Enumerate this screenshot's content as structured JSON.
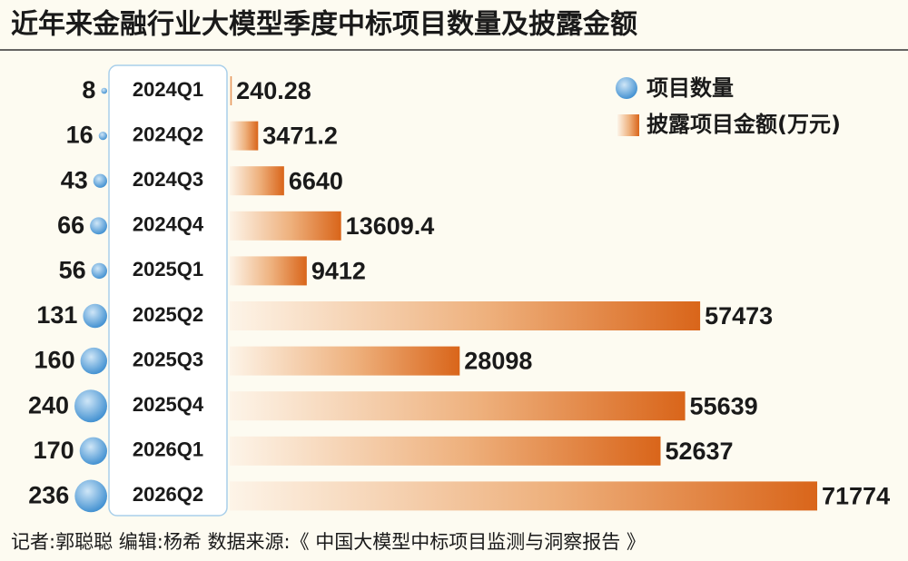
{
  "chart_data": {
    "type": "bar",
    "title": "近年来金融行业大模型季度中标项目数量及披露金额",
    "categories": [
      "2024Q1",
      "2024Q2",
      "2024Q3",
      "2024Q4",
      "2025Q1",
      "2025Q2",
      "2025Q3",
      "2025Q4",
      "2026Q1",
      "2026Q2"
    ],
    "series": [
      {
        "name": "项目数量",
        "color": "#3a8ccf",
        "values": [
          8,
          16,
          43,
          66,
          56,
          131,
          160,
          240,
          170,
          236
        ]
      },
      {
        "name": "披露项目金额(万元)",
        "color": "#d9651a",
        "values": [
          240.28,
          3471.2,
          6640,
          13609.4,
          9412,
          57473,
          28098,
          55639,
          52637,
          71774
        ]
      }
    ],
    "footer": "记者:郭聪聪   编辑:杨希   数据来源:《 中国大模型中标项目监测与洞察报告 》"
  }
}
